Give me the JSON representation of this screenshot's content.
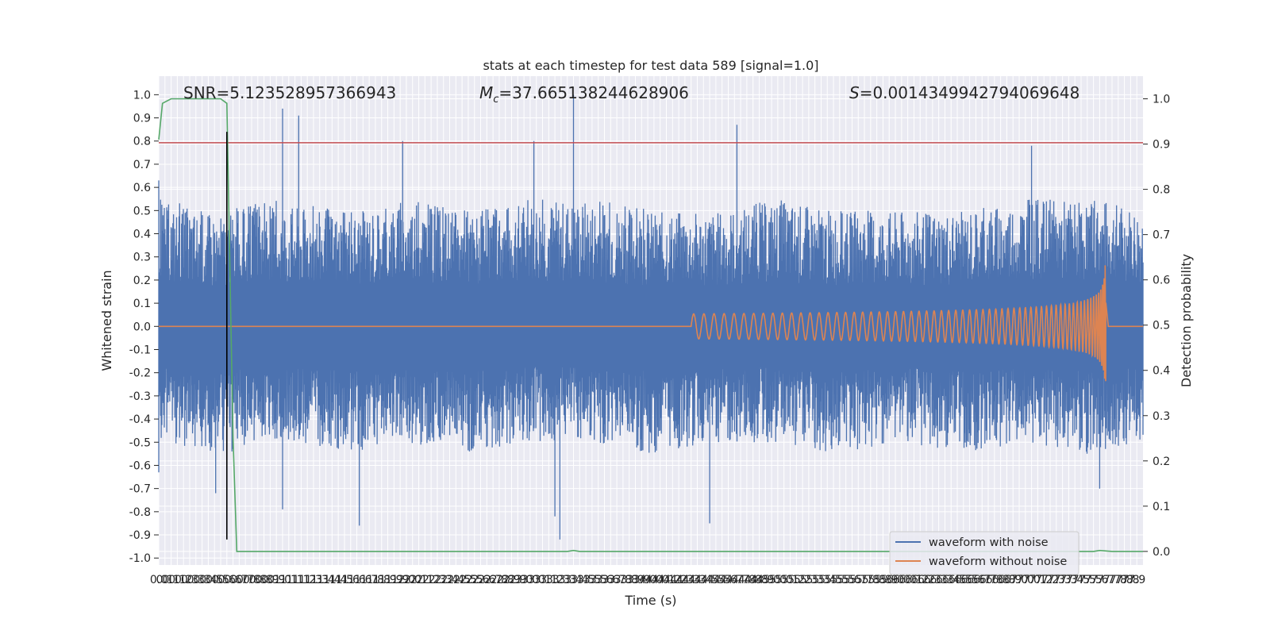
{
  "chart_data": {
    "type": "line",
    "title": "stats at each timestep for test data 589 [signal=1.0]",
    "xlabel": "Time (s)",
    "ylabel": "Whitened strain",
    "y2label": "Detection probability",
    "xlim": [
      0.0,
      7.95
    ],
    "ylim": [
      -1.03,
      1.08
    ],
    "y2lim": [
      -0.03,
      1.05
    ],
    "x_ticks": [
      0.0,
      0.05,
      0.1,
      0.15,
      0.2,
      0.25,
      0.3,
      0.35,
      0.4,
      0.45,
      0.5,
      0.55,
      0.6,
      0.65,
      0.7,
      0.75,
      0.8,
      0.85,
      0.9,
      0.95,
      1.0,
      1.05,
      1.1,
      1.15,
      1.2,
      1.25,
      1.3,
      1.35,
      1.4,
      1.45,
      1.5,
      1.55,
      1.6,
      1.65,
      1.7,
      1.75,
      1.8,
      1.85,
      1.9,
      1.95,
      2.0,
      2.05,
      2.1,
      2.15,
      2.2,
      2.25,
      2.3,
      2.35,
      2.4,
      2.45,
      2.5,
      2.55,
      2.6,
      2.65,
      2.7,
      2.75,
      2.8,
      2.85,
      2.9,
      2.95,
      3.0,
      3.05,
      3.1,
      3.15,
      3.2,
      3.25,
      3.3,
      3.35,
      3.4,
      3.45,
      3.5,
      3.55,
      3.6,
      3.65,
      3.7,
      3.75,
      3.8,
      3.85,
      3.9,
      3.95,
      4.0,
      4.05,
      4.1,
      4.15,
      4.2,
      4.25,
      4.3,
      4.35,
      4.4,
      4.45,
      4.5,
      4.55,
      4.6,
      4.65,
      4.7,
      4.75,
      4.8,
      4.85,
      4.9,
      4.95,
      5.0,
      5.05,
      5.1,
      5.15,
      5.2,
      5.25,
      5.3,
      5.35,
      5.4,
      5.45,
      5.5,
      5.55,
      5.6,
      5.65,
      5.7,
      5.75,
      5.8,
      5.85,
      5.9,
      5.95,
      6.0,
      6.05,
      6.1,
      6.15,
      6.2,
      6.25,
      6.3,
      6.35,
      6.4,
      6.45,
      6.5,
      6.55,
      6.6,
      6.65,
      6.7,
      6.75,
      6.8,
      6.85,
      6.9,
      6.95,
      7.0,
      7.05,
      7.1,
      7.15,
      7.2,
      7.25,
      7.3,
      7.35,
      7.4,
      7.45,
      7.5,
      7.55,
      7.6,
      7.65,
      7.7,
      7.75,
      7.8,
      7.85,
      7.9
    ],
    "y_ticks": [
      -1.0,
      -0.9,
      -0.8,
      -0.7,
      -0.6,
      -0.5,
      -0.4,
      -0.3,
      -0.2,
      -0.1,
      0.0,
      0.1,
      0.2,
      0.3,
      0.4,
      0.5,
      0.6,
      0.7,
      0.8,
      0.9,
      1.0
    ],
    "y2_ticks": [
      0.0,
      0.1,
      0.2,
      0.3,
      0.4,
      0.5,
      0.6,
      0.7,
      0.8,
      0.9,
      1.0
    ],
    "annotations": {
      "snr": "SNR=5.123528957366943",
      "mc_symbol": "M",
      "mc_sub": "c",
      "mc_value": "=37.665138244628906",
      "s_symbol": "S",
      "s_value": "=0.0014349942794069648"
    },
    "series": [
      {
        "name": "waveform with noise",
        "color": "#4c72b0",
        "envelope_x": [
          0.0,
          0.5,
          1.0,
          1.5,
          2.0,
          2.5,
          3.0,
          3.5,
          4.0,
          4.5,
          5.0,
          5.5,
          6.0,
          6.5,
          7.0,
          7.5,
          7.95
        ],
        "envelope_upper": [
          0.55,
          0.5,
          0.55,
          0.5,
          0.55,
          0.5,
          0.55,
          0.55,
          0.5,
          0.5,
          0.55,
          0.5,
          0.5,
          0.5,
          0.55,
          0.55,
          0.5
        ],
        "envelope_lower": [
          -0.5,
          -0.55,
          -0.5,
          -0.55,
          -0.5,
          -0.55,
          -0.5,
          -0.5,
          -0.55,
          -0.5,
          -0.5,
          -0.55,
          -0.5,
          -0.55,
          -0.5,
          -0.55,
          -0.5
        ],
        "spikes": [
          {
            "x": 0.0,
            "y": 0.63
          },
          {
            "x": 0.0,
            "y": -0.63
          },
          {
            "x": 0.46,
            "y": -0.72
          },
          {
            "x": 1.0,
            "y": 0.94
          },
          {
            "x": 1.0,
            "y": -0.79
          },
          {
            "x": 1.13,
            "y": 0.91
          },
          {
            "x": 1.62,
            "y": -0.86
          },
          {
            "x": 1.97,
            "y": 0.8
          },
          {
            "x": 3.03,
            "y": 0.8
          },
          {
            "x": 3.2,
            "y": -0.82
          },
          {
            "x": 3.24,
            "y": -0.92
          },
          {
            "x": 3.35,
            "y": 1.0
          },
          {
            "x": 4.45,
            "y": -0.85
          },
          {
            "x": 4.67,
            "y": 0.87
          },
          {
            "x": 7.05,
            "y": 0.78
          },
          {
            "x": 7.6,
            "y": -0.7
          }
        ]
      },
      {
        "name": "waveform without noise",
        "color": "#dd8452",
        "chirp_start": 4.3,
        "chirp_peak": 7.65,
        "peak_amplitude": 0.29
      },
      {
        "name": "",
        "axis": "right",
        "color": "#55a868",
        "x": [
          0.0,
          0.03,
          0.1,
          0.5,
          0.55,
          0.6,
          0.63,
          0.7,
          3.3,
          3.35,
          3.4,
          7.55,
          7.6,
          7.7,
          7.95
        ],
        "y": [
          0.91,
          0.99,
          1.0,
          1.0,
          0.99,
          0.25,
          0.0,
          0.0,
          0.0,
          0.002,
          0.0,
          0.0,
          0.002,
          0.0,
          0.0
        ]
      }
    ],
    "threshold": {
      "axis": "right",
      "value": 0.903,
      "color": "#c44e52"
    },
    "vertical_marker": {
      "x": 0.55,
      "y_from": -0.92,
      "y_to": 0.84,
      "color": "#000000"
    },
    "legend_placement": "lower-right",
    "grid": true
  }
}
